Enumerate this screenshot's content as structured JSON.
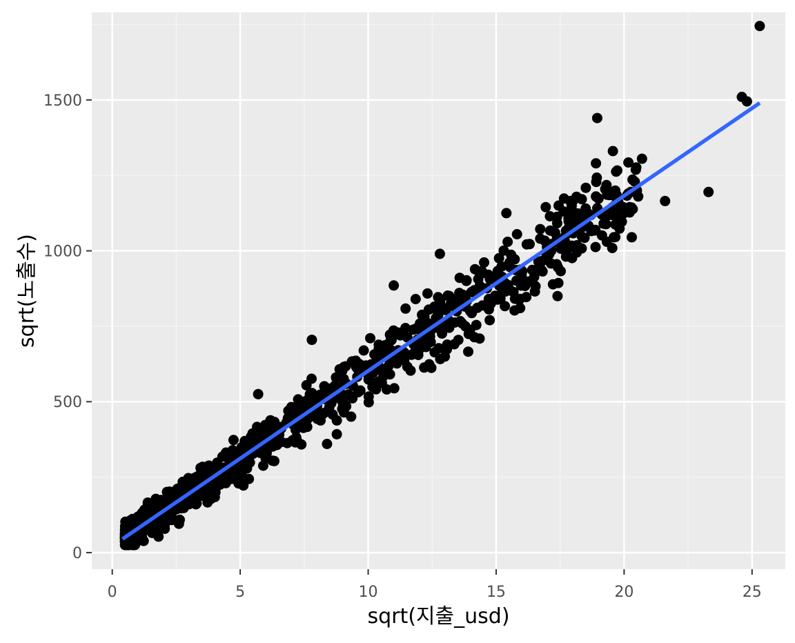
{
  "chart_data": {
    "type": "scatter",
    "title": "",
    "xlabel": "sqrt(지출_usd)",
    "ylabel": "sqrt(노출수)",
    "xlim": [
      -0.8,
      26.3
    ],
    "ylim": [
      -55,
      1790
    ],
    "x_ticks": [
      0,
      5,
      10,
      15,
      20,
      25
    ],
    "x_tick_labels": [
      "0",
      "5",
      "10",
      "15",
      "20",
      "25"
    ],
    "y_ticks": [
      0,
      500,
      1000,
      1500
    ],
    "y_tick_labels": [
      "0",
      "500",
      "1000",
      "1500"
    ],
    "grid": true,
    "legend": "none",
    "colors": {
      "panel_background": "#ebebeb",
      "grid_major": "#ffffff",
      "grid_minor": "#f5f5f5",
      "point": "#000000",
      "fit_line": "#3366ff",
      "tick_label": "#4d4d4d",
      "axis_title": "#000000"
    },
    "fit_line": {
      "x": [
        0.4,
        25.3
      ],
      "y": [
        45,
        1490
      ]
    },
    "series": [
      {
        "type": "scatter",
        "outliers": [
          {
            "x": 25.3,
            "y": 1745
          },
          {
            "x": 24.6,
            "y": 1510
          },
          {
            "x": 24.8,
            "y": 1495
          },
          {
            "x": 18.95,
            "y": 1440
          },
          {
            "x": 18.9,
            "y": 1290
          },
          {
            "x": 20.7,
            "y": 1305
          },
          {
            "x": 23.3,
            "y": 1195
          },
          {
            "x": 21.6,
            "y": 1165
          },
          {
            "x": 20.5,
            "y": 1200
          },
          {
            "x": 20.55,
            "y": 1180
          },
          {
            "x": 18.9,
            "y": 1180
          },
          {
            "x": 17.9,
            "y": 1165
          },
          {
            "x": 18.5,
            "y": 1140
          },
          {
            "x": 15.4,
            "y": 1125
          },
          {
            "x": 12.8,
            "y": 990
          },
          {
            "x": 11.0,
            "y": 885
          },
          {
            "x": 7.8,
            "y": 705
          },
          {
            "x": 5.7,
            "y": 525
          },
          {
            "x": 17.4,
            "y": 850
          },
          {
            "x": 19.2,
            "y": 1090
          },
          {
            "x": 20.3,
            "y": 1045
          },
          {
            "x": 19.6,
            "y": 1045
          }
        ],
        "cloud": {
          "count": 1000,
          "x_range": [
            0.5,
            20.5
          ],
          "slope": 58.0,
          "intercept": 20,
          "spread": 40
        }
      }
    ]
  }
}
